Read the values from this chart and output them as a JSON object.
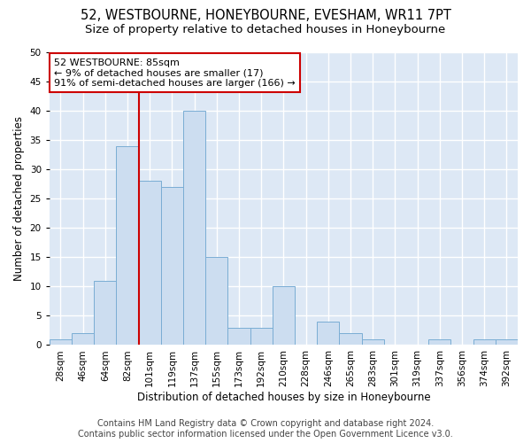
{
  "title_line1": "52, WESTBOURNE, HONEYBOURNE, EVESHAM, WR11 7PT",
  "title_line2": "Size of property relative to detached houses in Honeybourne",
  "xlabel": "Distribution of detached houses by size in Honeybourne",
  "ylabel": "Number of detached properties",
  "categories": [
    "28sqm",
    "46sqm",
    "64sqm",
    "82sqm",
    "101sqm",
    "119sqm",
    "137sqm",
    "155sqm",
    "173sqm",
    "192sqm",
    "210sqm",
    "228sqm",
    "246sqm",
    "265sqm",
    "283sqm",
    "301sqm",
    "319sqm",
    "337sqm",
    "356sqm",
    "374sqm",
    "392sqm"
  ],
  "values": [
    1,
    2,
    11,
    34,
    28,
    27,
    40,
    15,
    3,
    3,
    10,
    0,
    4,
    2,
    1,
    0,
    0,
    1,
    0,
    1,
    1
  ],
  "bar_color": "#ccddf0",
  "bar_edge_color": "#7aadd4",
  "vline_x": 3.5,
  "vline_color": "#cc0000",
  "annotation_text": "52 WESTBOURNE: 85sqm\n← 9% of detached houses are smaller (17)\n91% of semi-detached houses are larger (166) →",
  "annotation_box_color": "#ffffff",
  "annotation_box_edge": "#cc0000",
  "ylim": [
    0,
    50
  ],
  "yticks": [
    0,
    5,
    10,
    15,
    20,
    25,
    30,
    35,
    40,
    45,
    50
  ],
  "background_color": "#dde8f5",
  "grid_color": "#ffffff",
  "fig_background": "#ffffff",
  "footer_line1": "Contains HM Land Registry data © Crown copyright and database right 2024.",
  "footer_line2": "Contains public sector information licensed under the Open Government Licence v3.0.",
  "title_fontsize": 10.5,
  "subtitle_fontsize": 9.5,
  "axis_label_fontsize": 8.5,
  "tick_fontsize": 7.5,
  "annotation_fontsize": 8,
  "footer_fontsize": 7
}
